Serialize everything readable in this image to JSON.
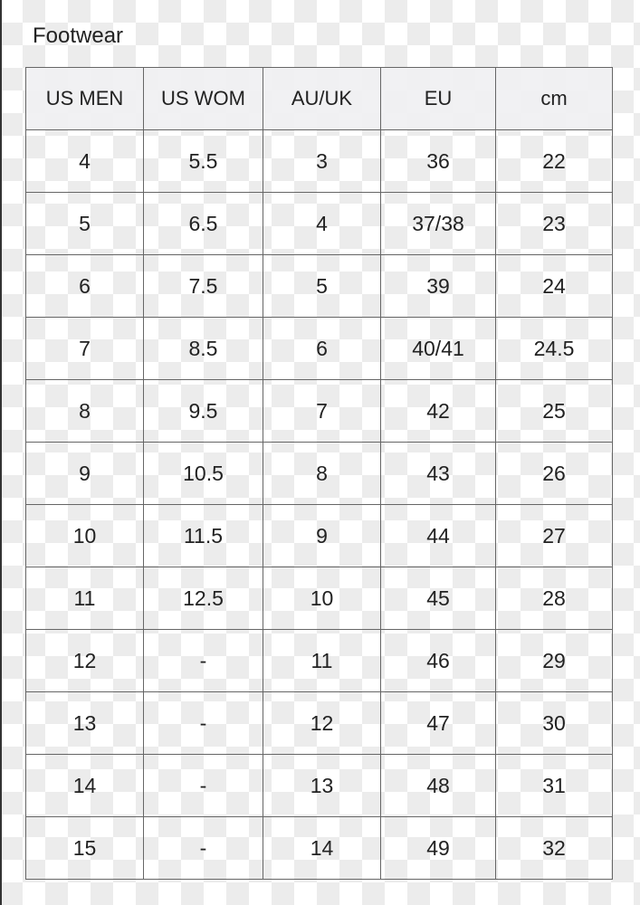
{
  "title": "Footwear",
  "headers": [
    "US MEN",
    "US WOM",
    "AU/UK",
    "EU",
    "cm"
  ],
  "rows": [
    [
      "4",
      "5.5",
      "3",
      "36",
      "22"
    ],
    [
      "5",
      "6.5",
      "4",
      "37/38",
      "23"
    ],
    [
      "6",
      "7.5",
      "5",
      "39",
      "24"
    ],
    [
      "7",
      "8.5",
      "6",
      "40/41",
      "24.5"
    ],
    [
      "8",
      "9.5",
      "7",
      "42",
      "25"
    ],
    [
      "9",
      "10.5",
      "8",
      "43",
      "26"
    ],
    [
      "10",
      "11.5",
      "9",
      "44",
      "27"
    ],
    [
      "11",
      "12.5",
      "10",
      "45",
      "28"
    ],
    [
      "12",
      "-",
      "11",
      "46",
      "29"
    ],
    [
      "13",
      "-",
      "12",
      "47",
      "30"
    ],
    [
      "14",
      "-",
      "13",
      "48",
      "31"
    ],
    [
      "15",
      "-",
      "14",
      "49",
      "32"
    ]
  ]
}
